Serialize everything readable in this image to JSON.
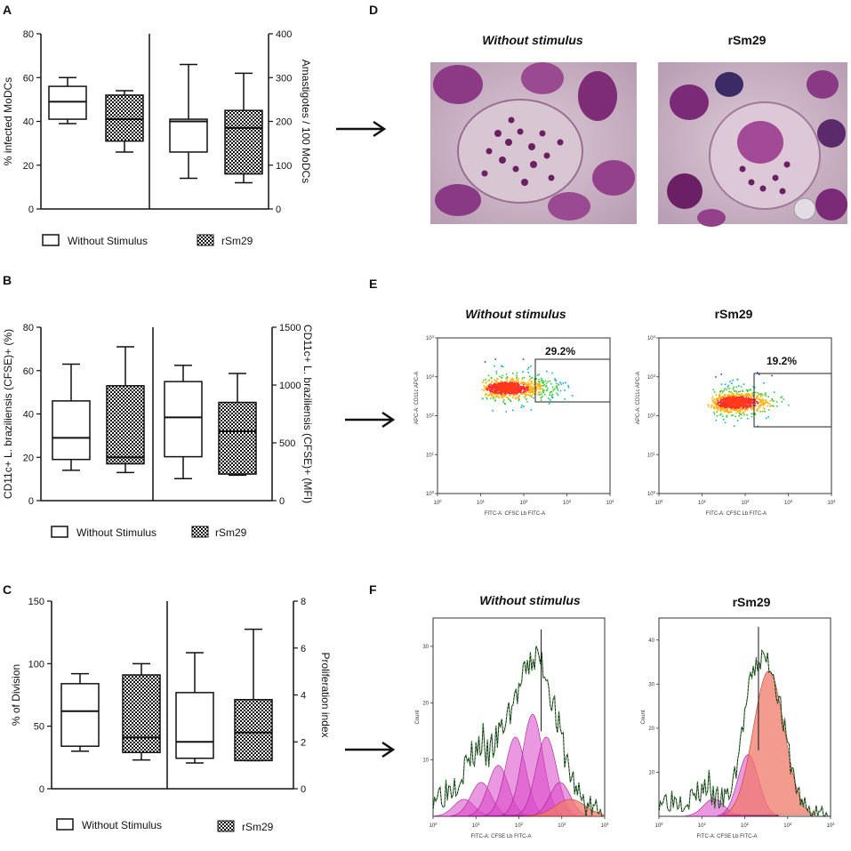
{
  "panels": {
    "a": {
      "letter": "A"
    },
    "b": {
      "letter": "B"
    },
    "c": {
      "letter": "C"
    },
    "d": {
      "letter": "D",
      "title_left": "Without stimulus",
      "title_right": "rSm29"
    },
    "e": {
      "letter": "E",
      "title_left": "Without stimulus",
      "title_right": "rSm29",
      "gate_left": "29.2%",
      "gate_right": "19.2%",
      "y_label": "APC-A: CD11c APC-A",
      "x_label": "FITC-A: CFSC Lb FITC-A"
    },
    "f": {
      "letter": "F",
      "title_left": "Without stimulus",
      "title_right": "rSm29",
      "y_label": "Count",
      "x_label": "FITC-A: CFSE Lb FITC-A"
    }
  },
  "legend": {
    "without": "Without Stimulus",
    "rsm29": "rSm29"
  },
  "colors": {
    "pink": "#d946c8",
    "salmon": "#f07a6a",
    "hot_red": "#ff2a4a",
    "cell_bg": "#c9aec2",
    "nucleus": "#7a2a6e"
  },
  "chart_data": [
    {
      "type": "box",
      "id": "A",
      "left_axis": {
        "label": "% infected MoDCs",
        "ylim": [
          0,
          80
        ],
        "ticks": [
          0,
          20,
          40,
          60,
          80
        ]
      },
      "right_axis": {
        "label": "Amastigotes / 100 MoDCs",
        "ylim": [
          0,
          400
        ],
        "ticks": [
          0,
          100,
          200,
          300,
          400
        ]
      },
      "groups": [
        {
          "series": "Without Stimulus",
          "axis": "left",
          "min": 39,
          "q1": 41,
          "median": 49,
          "q3": 56,
          "max": 60
        },
        {
          "series": "rSm29",
          "axis": "left",
          "min": 26,
          "q1": 31,
          "median": 41,
          "q3": 52,
          "max": 54
        },
        {
          "series": "Without Stimulus",
          "axis": "right",
          "min": 70,
          "q1": 130,
          "median": 200,
          "q3": 205,
          "max": 330
        },
        {
          "series": "rSm29",
          "axis": "right",
          "min": 60,
          "q1": 80,
          "median": 185,
          "q3": 225,
          "max": 310
        }
      ]
    },
    {
      "type": "box",
      "id": "B",
      "left_axis": {
        "label": "CD11c+ L. braziliensis (CFSE)+ (%)",
        "ylim": [
          0,
          80
        ],
        "ticks": [
          0,
          20,
          40,
          60,
          80
        ]
      },
      "right_axis": {
        "label": "CD11c+ L. braziliensis (CFSE)+ (MFI)",
        "ylim": [
          0,
          1500
        ],
        "ticks": [
          0,
          500,
          1000,
          1500
        ]
      },
      "groups": [
        {
          "series": "Without Stimulus",
          "axis": "left",
          "min": 14,
          "q1": 19,
          "median": 29,
          "q3": 46,
          "max": 63
        },
        {
          "series": "rSm29",
          "axis": "left",
          "min": 13,
          "q1": 17,
          "median": 20,
          "q3": 53,
          "max": 71
        },
        {
          "series": "Without Stimulus",
          "axis": "right",
          "min": 190,
          "q1": 380,
          "median": 720,
          "q3": 1030,
          "max": 1170
        },
        {
          "series": "rSm29",
          "axis": "right",
          "min": 220,
          "q1": 230,
          "median": 600,
          "q3": 850,
          "max": 1100
        }
      ]
    },
    {
      "type": "box",
      "id": "C",
      "left_axis": {
        "label": "% of Division",
        "ylim": [
          0,
          150
        ],
        "ticks": [
          0,
          50,
          100,
          150
        ]
      },
      "right_axis": {
        "label": "Proliferation index",
        "ylim": [
          0,
          8
        ],
        "ticks": [
          0,
          2,
          4,
          6,
          8
        ]
      },
      "groups": [
        {
          "series": "Without Stimulus",
          "axis": "left",
          "min": 30,
          "q1": 34,
          "median": 62,
          "q3": 84,
          "max": 92
        },
        {
          "series": "rSm29",
          "axis": "left",
          "min": 23,
          "q1": 29,
          "median": 41,
          "q3": 91,
          "max": 100
        },
        {
          "series": "Without Stimulus",
          "axis": "right",
          "min": 1.1,
          "q1": 1.3,
          "median": 2.0,
          "q3": 4.1,
          "max": 5.8
        },
        {
          "series": "rSm29",
          "axis": "right",
          "min": 1.2,
          "q1": 1.2,
          "median": 2.4,
          "q3": 3.8,
          "max": 6.8
        }
      ]
    },
    {
      "type": "scatter",
      "id": "E",
      "x_ticks": [
        "10^0",
        "10^1",
        "10^2",
        "10^3",
        "10^4"
      ],
      "y_ticks": [
        "10^0",
        "10^1",
        "10^2",
        "10^3",
        "10^4"
      ],
      "gates": [
        {
          "label": "Without stimulus",
          "percent": 29.2
        },
        {
          "label": "rSm29",
          "percent": 19.2
        }
      ]
    },
    {
      "type": "histogram",
      "id": "F",
      "left": {
        "y_ticks": [
          10,
          20,
          30
        ],
        "x_ticks": [
          "10^0",
          "10^1",
          "10^2",
          "10^3",
          "10^4"
        ]
      },
      "right": {
        "y_ticks": [
          10,
          20,
          30,
          40
        ],
        "x_ticks": [
          "10^0",
          "10^1",
          "10^2",
          "10^3",
          "10^4"
        ]
      }
    }
  ]
}
